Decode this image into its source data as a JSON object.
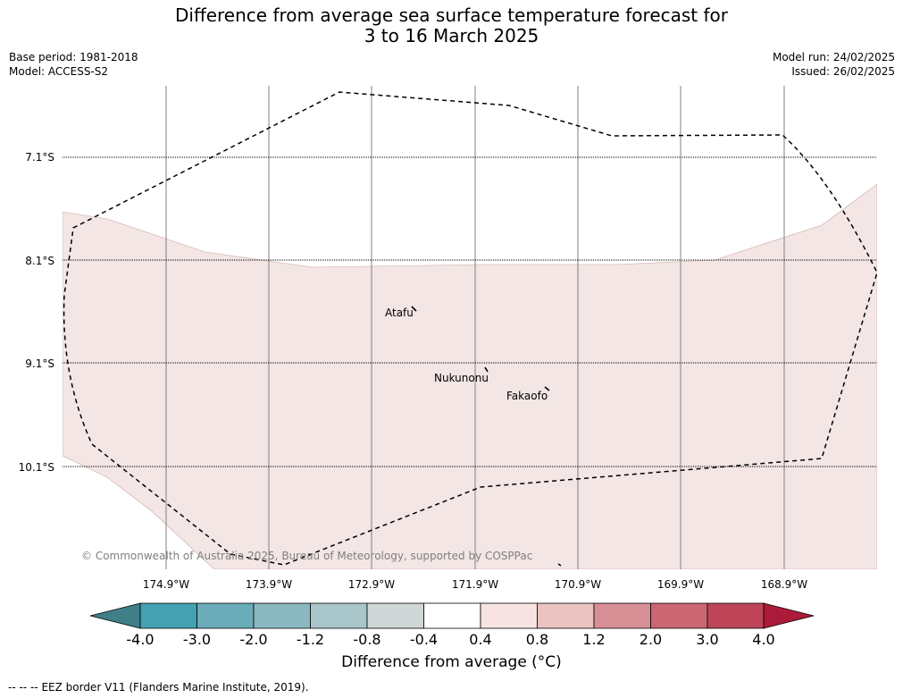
{
  "header": {
    "title_line1": "Difference from average sea surface temperature forecast for",
    "title_line2": "3 to 16 March 2025",
    "base_period": "Base period: 1981-2018",
    "model": "Model: ACCESS-S2",
    "model_run": "Model run: 24/02/2025",
    "issued": "Issued: 26/02/2025"
  },
  "map": {
    "lat_labels": [
      "7.1°S",
      "8.1°S",
      "9.1°S",
      "10.1°S"
    ],
    "lon_labels": [
      "174.9°W",
      "173.9°W",
      "172.9°W",
      "171.9°W",
      "170.9°W",
      "169.9°W",
      "168.9°W"
    ],
    "places": [
      {
        "name": "Atafu"
      },
      {
        "name": "Nukunonu"
      },
      {
        "name": "Fakaofo"
      }
    ],
    "copyright": "© Commonwealth of Australia 2025, Bureau of Meteorology, supported by COSPPac",
    "anomaly_fill_color": "#f3e6e4"
  },
  "colorbar": {
    "label": "Difference from average (°C)",
    "ticks": [
      "-4.0",
      "-3.0",
      "-2.0",
      "-1.2",
      "-0.8",
      "-0.4",
      "0.4",
      "0.8",
      "1.2",
      "2.0",
      "3.0",
      "4.0"
    ],
    "colors": [
      "#3f7f87",
      "#45a1b1",
      "#6badbb",
      "#8bb7c1",
      "#a9c7cb",
      "#d0d7d6",
      "#ffffff",
      "#f7e4e2",
      "#e9c4c0",
      "#d78f96",
      "#cb6672",
      "#bd4557",
      "#ac1b3a"
    ]
  },
  "footer": {
    "legend_symbol": "-- -- --",
    "legend_text": "EEZ border V11 (Flanders Marine Institute, 2019)."
  }
}
